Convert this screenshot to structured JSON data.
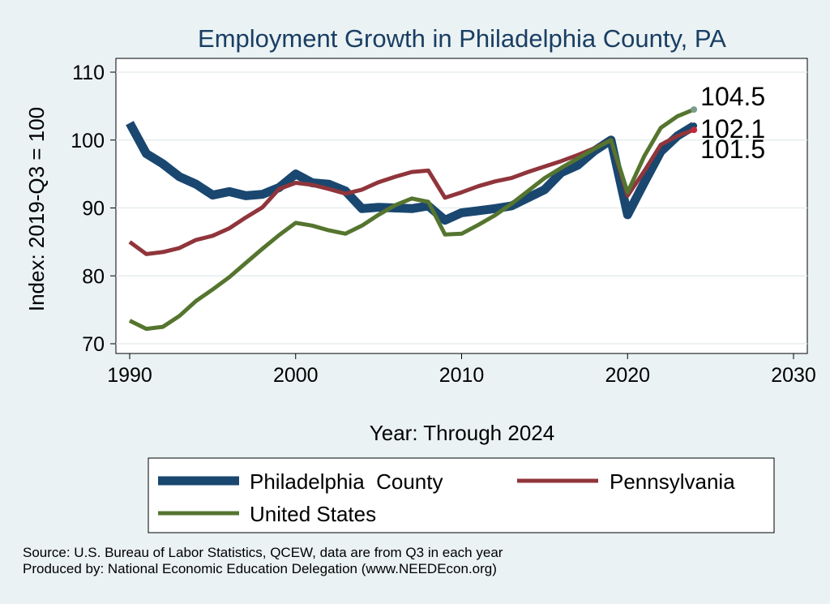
{
  "chart_data": {
    "type": "line",
    "title": "Employment Growth in Philadelphia County, PA",
    "xlabel": "Year: Through 2024",
    "ylabel": "Index: 2019-Q3 = 100",
    "xlim": [
      1990,
      2030
    ],
    "ylim": [
      70,
      110
    ],
    "xticks": [
      1990,
      2000,
      2010,
      2020,
      2030
    ],
    "yticks": [
      70,
      80,
      90,
      100,
      110
    ],
    "grid": true,
    "legend_position": "bottom",
    "x": [
      1990,
      1991,
      1992,
      1993,
      1994,
      1995,
      1996,
      1997,
      1998,
      1999,
      2000,
      2001,
      2002,
      2003,
      2004,
      2005,
      2006,
      2007,
      2008,
      2009,
      2010,
      2011,
      2012,
      2013,
      2014,
      2015,
      2016,
      2017,
      2018,
      2019,
      2020,
      2021,
      2022,
      2023,
      2024
    ],
    "series": [
      {
        "name": "Philadelphia  County",
        "color": "#1a476f",
        "values": [
          102.5,
          98.0,
          96.5,
          94.6,
          93.5,
          91.9,
          92.4,
          91.8,
          92.0,
          93.0,
          95.0,
          93.7,
          93.5,
          92.5,
          89.9,
          90.1,
          90.0,
          89.9,
          90.3,
          88.2,
          89.3,
          89.6,
          89.9,
          90.3,
          91.5,
          92.7,
          95.2,
          96.3,
          98.4,
          100.0,
          89.0,
          93.7,
          98.3,
          100.6,
          102.1
        ],
        "end_label": "102.1"
      },
      {
        "name": "Pennsylvania",
        "color": "#90353b",
        "values": [
          85.0,
          83.2,
          83.5,
          84.1,
          85.3,
          85.9,
          87.0,
          88.6,
          90.1,
          92.8,
          93.7,
          93.4,
          92.8,
          92.1,
          92.7,
          93.8,
          94.6,
          95.3,
          95.5,
          91.5,
          92.3,
          93.2,
          93.9,
          94.4,
          95.3,
          96.1,
          96.9,
          97.8,
          98.8,
          100.0,
          91.8,
          95.4,
          99.3,
          100.6,
          101.5
        ],
        "end_label": "101.5"
      },
      {
        "name": "United States",
        "color": "#55752f",
        "values": [
          73.4,
          72.2,
          72.5,
          74.1,
          76.3,
          78.0,
          79.8,
          81.9,
          84.0,
          86.0,
          87.8,
          87.4,
          86.7,
          86.2,
          87.4,
          89.0,
          90.4,
          91.4,
          90.9,
          86.1,
          86.2,
          87.5,
          88.9,
          90.6,
          92.5,
          94.4,
          95.9,
          97.3,
          98.7,
          100.0,
          92.3,
          97.6,
          101.8,
          103.5,
          104.5
        ],
        "end_label": "104.5"
      }
    ]
  },
  "sources": [
    "Source: U.S. Bureau of Labor Statistics, QCEW, data are from Q3 in each year",
    "Produced by: National Economic Education Delegation (www.NEEDEcon.org)"
  ]
}
